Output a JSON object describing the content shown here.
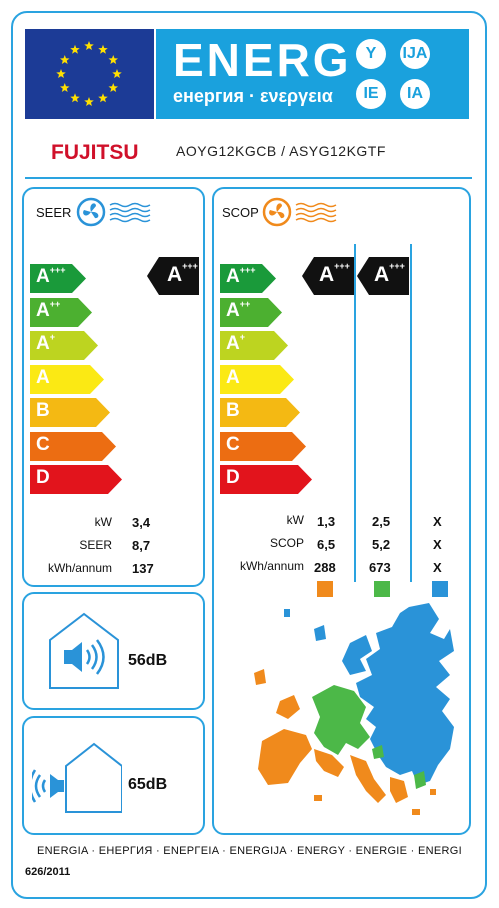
{
  "header": {
    "title": "ENERG",
    "subtitle": "енергия · ενεργεια",
    "language_suffixes": [
      "Y",
      "IJA",
      "IE",
      "IA"
    ],
    "brand": "FUJITSU",
    "models": "AOYG12KGCB  / ASYG12KGTF"
  },
  "cooling": {
    "title": "SEER",
    "icon": "fan-icon",
    "scale": [
      {
        "class": "A",
        "plus": "+++",
        "color": "#1a9a3a"
      },
      {
        "class": "A",
        "plus": "++",
        "color": "#4cb030"
      },
      {
        "class": "A",
        "plus": "+",
        "color": "#bdd420"
      },
      {
        "class": "A",
        "plus": "",
        "color": "#fbe914"
      },
      {
        "class": "B",
        "plus": "",
        "color": "#f4b913"
      },
      {
        "class": "C",
        "plus": "",
        "color": "#ec6d12"
      },
      {
        "class": "D",
        "plus": "",
        "color": "#e2141c"
      }
    ],
    "rating": {
      "class": "A",
      "plus": "+++"
    },
    "metrics": [
      {
        "label": "kW",
        "value": "3,4"
      },
      {
        "label": "SEER",
        "value": "8,7"
      },
      {
        "label": "kWh/annum",
        "value": "137"
      }
    ]
  },
  "heating": {
    "title": "SCOP",
    "icon": "fan-icon",
    "ratings": [
      {
        "class": "A",
        "plus": "+++"
      },
      {
        "class": "A",
        "plus": "+++"
      }
    ],
    "metric_labels": [
      "kW",
      "SCOP",
      "kWh/annum"
    ],
    "zones": [
      {
        "values": [
          "1,3",
          "6,5",
          "288"
        ],
        "color": "#f08a1c"
      },
      {
        "values": [
          "2,5",
          "5,2",
          "673"
        ],
        "color": "#4cb848"
      },
      {
        "values": [
          "X",
          "X",
          "X"
        ],
        "color": "#2a93d8"
      }
    ]
  },
  "sound": {
    "indoor": {
      "value": "56dB",
      "icon": "speaker-house-icon"
    },
    "outdoor": {
      "value": "65dB",
      "icon": "speaker-outside-house-icon"
    }
  },
  "footer": {
    "languages": "ENERGIA · ЕНЕРГИЯ · ΕΝΕΡΓΕΙΑ · ENERGIJA · ENERGY · ENERGIE · ENERGI",
    "regulation": "626/2011"
  }
}
